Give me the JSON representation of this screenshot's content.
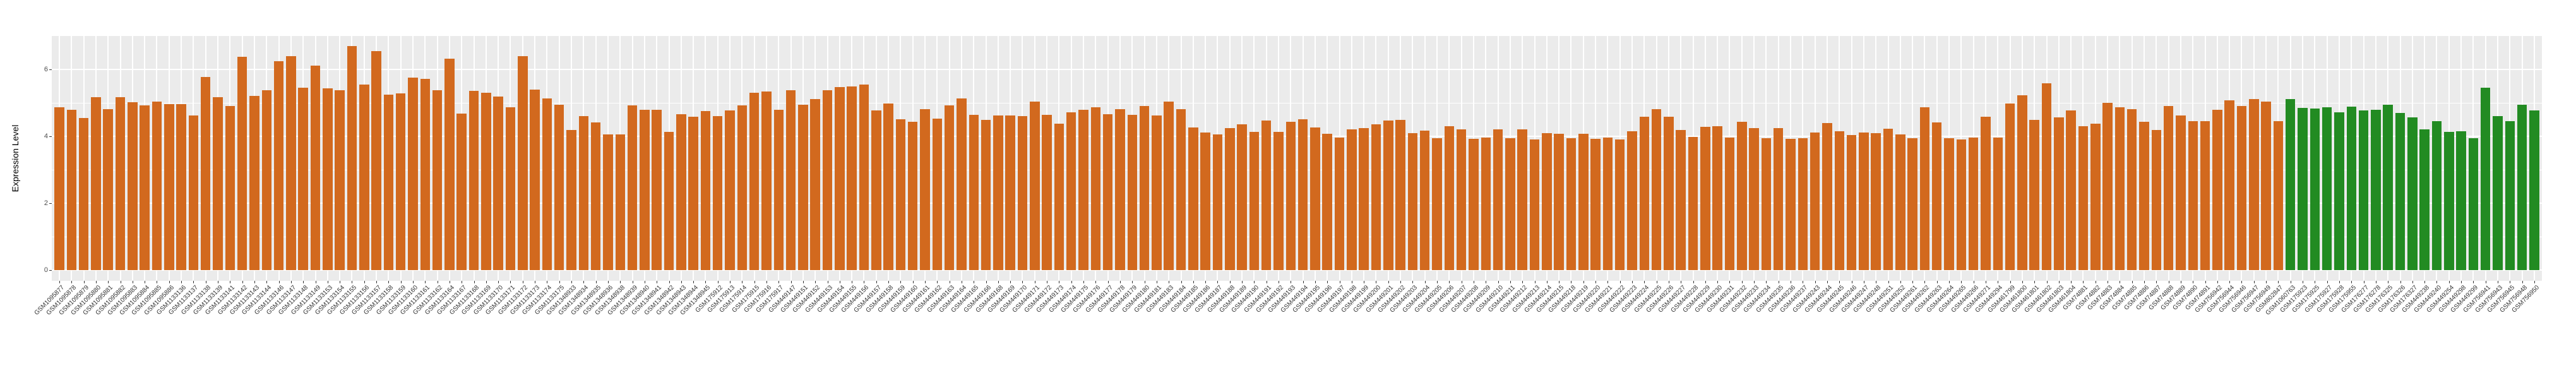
{
  "chart_data": {
    "type": "bar",
    "title": "",
    "xlabel": "",
    "ylabel": "Expression Level",
    "ylim": [
      0,
      7
    ],
    "yticks_major": [
      0,
      2,
      4,
      6
    ],
    "yticks_minor": [
      1,
      3,
      5
    ],
    "grid": true,
    "legend_position": "none",
    "panel_background": "#EBEBEB",
    "gridline_color": "#ffffff",
    "bar_colors": {
      "group1": "#D2691E",
      "group2": "#228B22"
    },
    "group2_start_index": 183,
    "categories": [
      "GSM1095877",
      "GSM1095878",
      "GSM1095879",
      "GSM1095880",
      "GSM1095881",
      "GSM1095882",
      "GSM1095883",
      "GSM1095884",
      "GSM1095885",
      "GSM1095886",
      "GSM1133136",
      "GSM1133137",
      "GSM1133138",
      "GSM1133139",
      "GSM1133141",
      "GSM1133142",
      "GSM1133143",
      "GSM1133144",
      "GSM1133146",
      "GSM1133147",
      "GSM1133148",
      "GSM1133149",
      "GSM1133153",
      "GSM1133154",
      "GSM1133155",
      "GSM1133156",
      "GSM1133157",
      "GSM1133158",
      "GSM1133159",
      "GSM1133160",
      "GSM1133161",
      "GSM1133162",
      "GSM1133164",
      "GSM1133167",
      "GSM1133168",
      "GSM1133169",
      "GSM1133170",
      "GSM1133171",
      "GSM1133172",
      "GSM1133173",
      "GSM1133174",
      "GSM1133175",
      "GSM1348933",
      "GSM1348934",
      "GSM1348935",
      "GSM1348936",
      "GSM1348938",
      "GSM1348939",
      "GSM1348940",
      "GSM1348941",
      "GSM1348942",
      "GSM1348943",
      "GSM1348944",
      "GSM1348945",
      "GSM175912",
      "GSM175913",
      "GSM175914",
      "GSM175915",
      "GSM175916",
      "GSM175917",
      "GSM449147",
      "GSM449151",
      "GSM449152",
      "GSM449153",
      "GSM449154",
      "GSM449155",
      "GSM449156",
      "GSM449157",
      "GSM449158",
      "GSM449159",
      "GSM449160",
      "GSM449161",
      "GSM449162",
      "GSM449163",
      "GSM449164",
      "GSM449165",
      "GSM449166",
      "GSM449168",
      "GSM449169",
      "GSM449170",
      "GSM449171",
      "GSM449172",
      "GSM449173",
      "GSM449174",
      "GSM449175",
      "GSM449176",
      "GSM449177",
      "GSM449178",
      "GSM449179",
      "GSM449180",
      "GSM449181",
      "GSM449183",
      "GSM449184",
      "GSM449185",
      "GSM449186",
      "GSM449187",
      "GSM449188",
      "GSM449189",
      "GSM449190",
      "GSM449191",
      "GSM449192",
      "GSM449193",
      "GSM449194",
      "GSM449195",
      "GSM449196",
      "GSM449197",
      "GSM449198",
      "GSM449199",
      "GSM449200",
      "GSM449201",
      "GSM449202",
      "GSM449203",
      "GSM449204",
      "GSM449205",
      "GSM449206",
      "GSM449207",
      "GSM449208",
      "GSM449209",
      "GSM449210",
      "GSM449211",
      "GSM449212",
      "GSM449213",
      "GSM449214",
      "GSM449215",
      "GSM449218",
      "GSM449219",
      "GSM449220",
      "GSM449221",
      "GSM449222",
      "GSM449223",
      "GSM449224",
      "GSM449225",
      "GSM449226",
      "GSM449227",
      "GSM449228",
      "GSM449229",
      "GSM449230",
      "GSM449231",
      "GSM449232",
      "GSM449233",
      "GSM449234",
      "GSM449235",
      "GSM449236",
      "GSM449237",
      "GSM449243",
      "GSM449244",
      "GSM449245",
      "GSM449246",
      "GSM449247",
      "GSM449248",
      "GSM449251",
      "GSM449252",
      "GSM449261",
      "GSM449262",
      "GSM449263",
      "GSM449264",
      "GSM449265",
      "GSM449266",
      "GSM449271",
      "GSM449294",
      "GSM461799",
      "GSM461800",
      "GSM461801",
      "GSM461802",
      "GSM461803",
      "GSM461804",
      "GSM74881",
      "GSM74882",
      "GSM74883",
      "GSM74884",
      "GSM74885",
      "GSM74886",
      "GSM74887",
      "GSM74888",
      "GSM74889",
      "GSM74890",
      "GSM74891",
      "GSM756942",
      "GSM756944",
      "GSM756946",
      "GSM756947",
      "GSM756949",
      "GSM802847",
      "GSM1060763",
      "GSM175923",
      "GSM175925",
      "GSM175927",
      "GSM175928",
      "GSM175955",
      "GSM176277",
      "GSM176278",
      "GSM176325",
      "GSM176326",
      "GSM176327",
      "GSM449238",
      "GSM449240",
      "GSM449254",
      "GSM449298",
      "GSM449299",
      "GSM756941",
      "GSM756943",
      "GSM756945",
      "GSM756948",
      "GSM756950"
    ],
    "values": [
      4.87,
      4.79,
      4.55,
      5.17,
      4.82,
      5.17,
      5.02,
      4.92,
      5.03,
      4.96,
      4.97,
      4.63,
      5.77,
      5.17,
      4.91,
      6.38,
      5.2,
      5.37,
      6.24,
      6.39,
      5.45,
      6.12,
      5.43,
      5.38,
      6.69,
      5.54,
      6.55,
      5.24,
      5.29,
      5.75,
      5.71,
      5.37,
      6.33,
      4.68,
      5.35,
      5.31,
      5.18,
      4.87,
      6.4,
      5.39,
      5.13,
      4.95,
      4.18,
      4.6,
      4.41,
      4.05,
      4.06,
      4.92,
      4.79,
      4.79,
      4.13,
      4.66,
      4.58,
      4.76,
      4.6,
      4.77,
      4.92,
      5.3,
      5.34,
      4.8,
      5.37,
      4.94,
      5.12,
      5.37,
      5.48,
      5.5,
      5.55,
      4.77,
      4.99,
      4.51,
      4.43,
      4.82,
      4.53,
      4.93,
      5.14,
      4.65,
      4.49,
      4.62,
      4.62,
      4.6,
      5.04,
      4.65,
      4.38,
      4.72,
      4.79,
      4.87,
      4.66,
      4.81,
      4.65,
      4.91,
      4.62,
      5.03,
      4.82,
      4.27,
      4.11,
      4.06,
      4.24,
      4.36,
      4.14,
      4.48,
      4.14,
      4.43,
      4.51,
      4.26,
      4.07,
      3.96,
      4.21,
      4.24,
      4.35,
      4.48,
      4.49,
      4.1,
      4.17,
      3.94,
      4.3,
      4.21,
      3.92,
      3.96,
      4.21,
      3.95,
      4.21,
      3.9,
      4.1,
      4.08,
      3.94,
      4.08,
      3.93,
      3.97,
      3.91,
      4.15,
      4.59,
      4.82,
      4.58,
      4.18,
      3.98,
      4.29,
      4.31,
      3.96,
      4.44,
      4.24,
      3.95,
      4.24,
      3.92,
      3.95,
      4.11,
      4.4,
      4.15,
      4.04,
      4.12,
      4.1,
      4.22,
      4.06,
      3.95,
      4.87,
      4.41,
      3.95,
      3.9,
      3.96,
      4.58,
      3.97,
      4.98,
      5.23,
      4.5,
      5.58,
      4.56,
      4.77,
      4.3,
      4.38,
      5.0,
      4.87,
      4.81,
      4.44,
      4.19,
      4.9,
      4.62,
      4.45,
      4.45,
      4.79,
      5.07,
      4.9,
      5.12,
      5.03,
      4.46,
      5.12,
      4.85,
      4.83,
      4.87,
      4.72,
      4.88,
      4.77,
      4.79,
      4.94,
      4.69,
      4.57,
      4.21,
      4.46,
      4.13,
      4.16,
      3.95,
      5.46,
      4.6,
      4.46,
      4.94,
      4.77
    ]
  }
}
